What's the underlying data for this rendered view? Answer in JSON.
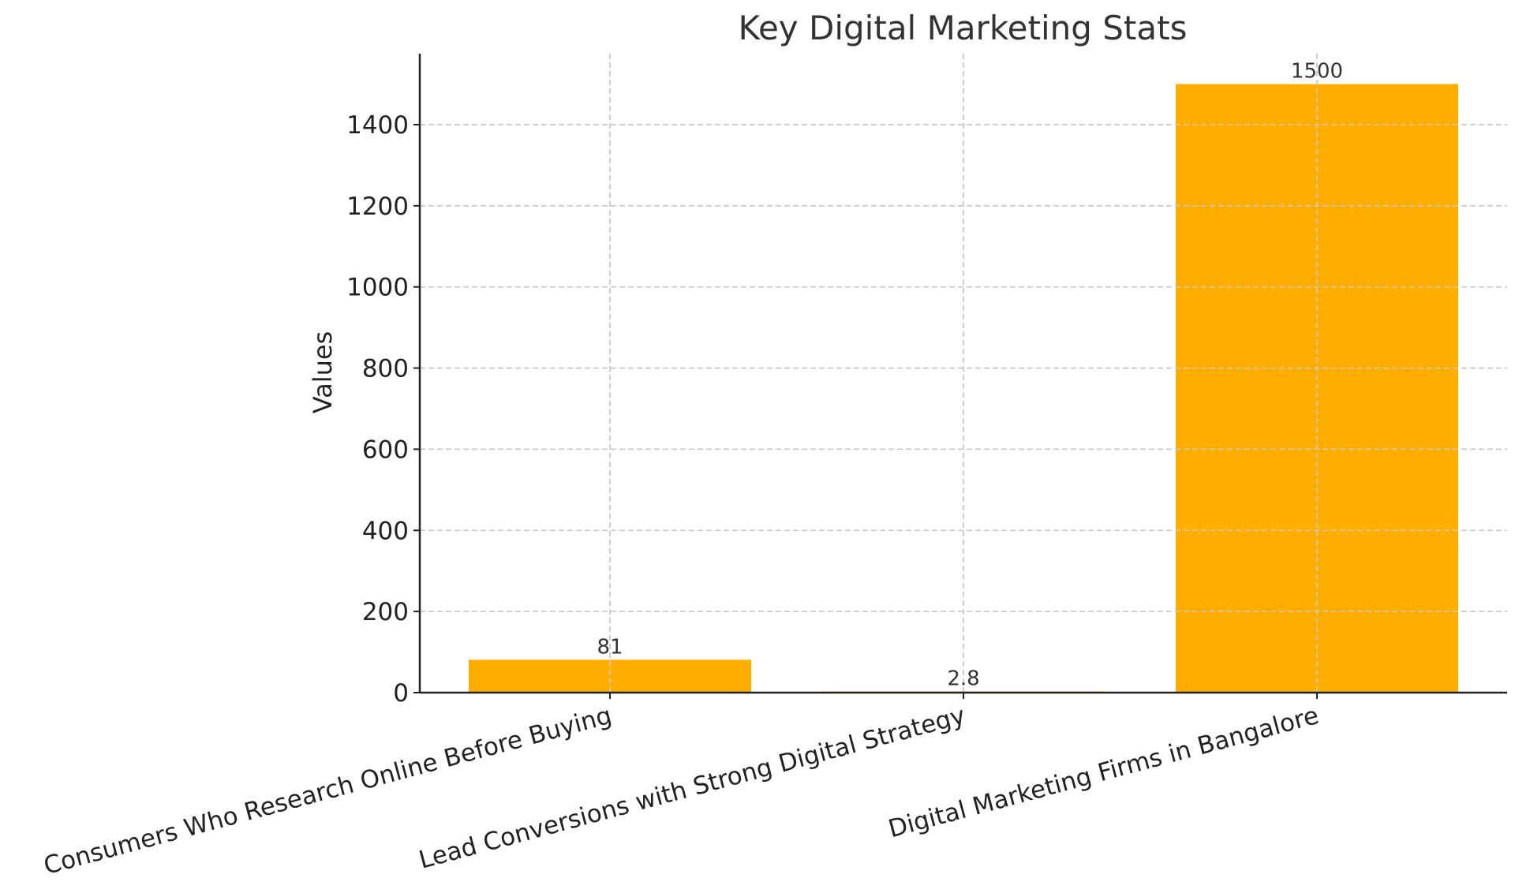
{
  "colors": {
    "bar": "#FFAE00"
  },
  "chart_data": {
    "type": "bar",
    "title": "Key Digital Marketing Stats",
    "xlabel": "",
    "ylabel": "Values",
    "categories": [
      "Consumers Who Research Online Before Buying",
      "Lead Conversions with Strong Digital Strategy",
      "Digital Marketing Firms in Bangalore"
    ],
    "values": [
      81,
      2.8,
      1500
    ],
    "data_labels": [
      "81",
      "2.8",
      "1500"
    ],
    "ylim": [
      0,
      1575
    ],
    "yticks": [
      0,
      200,
      400,
      600,
      800,
      1000,
      1200,
      1400
    ],
    "ytick_labels": [
      "0",
      "200",
      "400",
      "600",
      "800",
      "1000",
      "1200",
      "1400"
    ],
    "grid": true,
    "legend": "none"
  }
}
